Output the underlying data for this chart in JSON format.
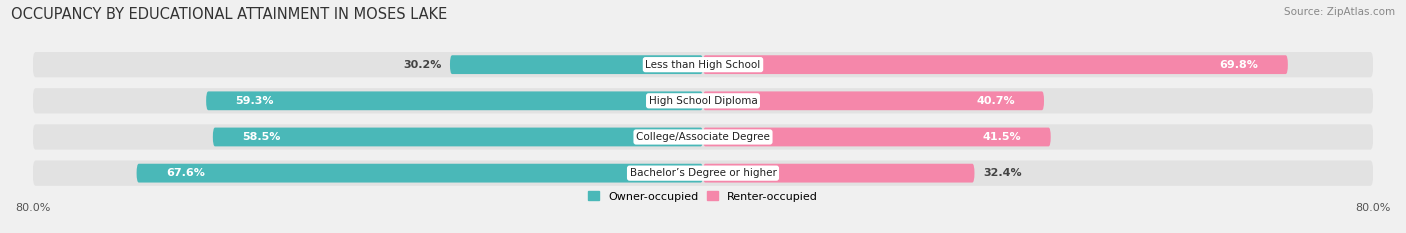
{
  "title": "OCCUPANCY BY EDUCATIONAL ATTAINMENT IN MOSES LAKE",
  "source": "Source: ZipAtlas.com",
  "categories": [
    "Less than High School",
    "High School Diploma",
    "College/Associate Degree",
    "Bachelor’s Degree or higher"
  ],
  "owner_pct": [
    30.2,
    59.3,
    58.5,
    67.6
  ],
  "renter_pct": [
    69.8,
    40.7,
    41.5,
    32.4
  ],
  "owner_color": "#4ab8b8",
  "renter_color": "#f587aa",
  "background_color": "#f0f0f0",
  "bar_bg_color": "#e2e2e2",
  "title_fontsize": 10.5,
  "source_fontsize": 7.5,
  "bar_label_fontsize": 8,
  "cat_label_fontsize": 7.5,
  "axis_limit": 80,
  "bar_height": 0.52,
  "legend_labels": [
    "Owner-occupied",
    "Renter-occupied"
  ]
}
